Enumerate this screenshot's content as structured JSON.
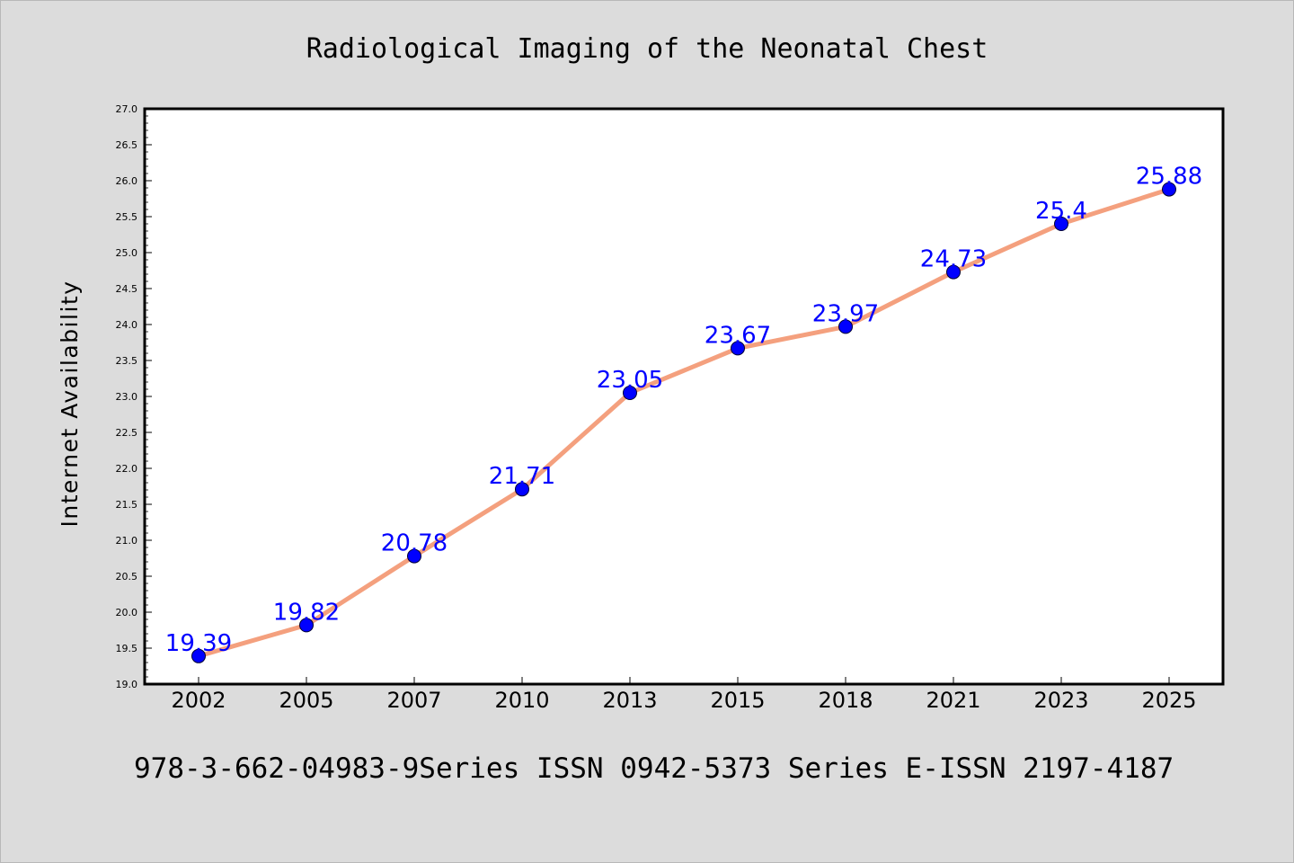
{
  "footer_text": "978-3-662-04983-9Series ISSN 0942-5373 Series E-ISSN 2197-4187",
  "colors": {
    "background": "#dcdcdc",
    "plot_background": "#ffffff",
    "line": "#f4a07e",
    "marker": "#0000ff",
    "label": "#0000ff"
  },
  "chart_data": {
    "type": "line",
    "title": "Radiological Imaging of the Neonatal Chest",
    "xlabel": "",
    "ylabel": "Internet Availability",
    "categories": [
      "2002",
      "2005",
      "2007",
      "2010",
      "2013",
      "2015",
      "2018",
      "2021",
      "2023",
      "2025"
    ],
    "series": [
      {
        "values": [
          19.39,
          19.82,
          20.78,
          21.71,
          23.05,
          23.67,
          23.97,
          24.73,
          25.4,
          25.88
        ],
        "labels": [
          "19.39",
          "19.82",
          "20.78",
          "21.71",
          "23.05",
          "23.67",
          "23.97",
          "24.73",
          "25.4",
          "25.88"
        ]
      }
    ],
    "ylim": [
      19.0,
      27.0
    ],
    "yticks": [
      "19.0",
      "19.5",
      "20.0",
      "20.5",
      "21.0",
      "21.5",
      "22.0",
      "22.5",
      "23.0",
      "23.5",
      "24.0",
      "24.5",
      "25.0",
      "25.5",
      "26.0",
      "26.5",
      "27.0"
    ],
    "grid": false,
    "legend": "none"
  }
}
